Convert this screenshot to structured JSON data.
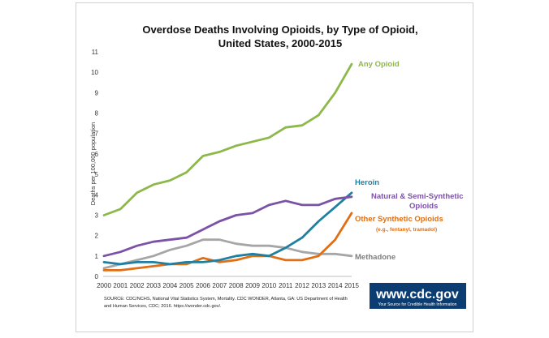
{
  "chart_data": {
    "type": "line",
    "title_line1": "Overdose Deaths Involving Opioids, by Type of Opioid,",
    "title_line2": "United States, 2000-2015",
    "ylabel": "Deaths per 100,000 population",
    "xlabel": "",
    "x": [
      2000,
      2001,
      2002,
      2003,
      2004,
      2005,
      2006,
      2007,
      2008,
      2009,
      2010,
      2011,
      2012,
      2013,
      2014,
      2015
    ],
    "ylim": [
      0,
      11
    ],
    "yticks": [
      0,
      1,
      2,
      3,
      4,
      5,
      6,
      7,
      8,
      9,
      10,
      11
    ],
    "grid": false,
    "series": [
      {
        "name": "Any Opioid",
        "color": "#8DB84A",
        "values": [
          3.0,
          3.3,
          4.1,
          4.5,
          4.7,
          5.1,
          5.9,
          6.1,
          6.4,
          6.6,
          6.8,
          7.3,
          7.4,
          7.9,
          9.0,
          10.4
        ]
      },
      {
        "name": "Natural & Semi-Synthetic Opioids",
        "color": "#7B52A6",
        "values": [
          1.0,
          1.2,
          1.5,
          1.7,
          1.8,
          1.9,
          2.3,
          2.7,
          3.0,
          3.1,
          3.5,
          3.7,
          3.5,
          3.5,
          3.8,
          3.9
        ]
      },
      {
        "name": "Heroin",
        "color": "#1F7FA0",
        "values": [
          0.7,
          0.6,
          0.7,
          0.7,
          0.6,
          0.7,
          0.7,
          0.8,
          1.0,
          1.1,
          1.0,
          1.4,
          1.9,
          2.7,
          3.4,
          4.1
        ]
      },
      {
        "name": "Other Synthetic Opioids",
        "subtitle": "(e.g., fentanyl, tramadol)",
        "color": "#E06F14",
        "values": [
          0.3,
          0.3,
          0.4,
          0.5,
          0.6,
          0.6,
          0.9,
          0.7,
          0.8,
          1.0,
          1.0,
          0.8,
          0.8,
          1.0,
          1.8,
          3.1
        ]
      },
      {
        "name": "Methadone",
        "color": "#A6A6A6",
        "values": [
          0.4,
          0.6,
          0.8,
          1.0,
          1.3,
          1.5,
          1.8,
          1.8,
          1.6,
          1.5,
          1.5,
          1.4,
          1.2,
          1.1,
          1.1,
          1.0
        ]
      }
    ]
  },
  "source": {
    "line1": "SOURCE: CDC/NCHS, National Vital Statistics System, Mortality. CDC WONDER, Atlanta, GA: US Department of Health",
    "line2": "and Human Services, CDC; 2016. https://wonder.cdc.gov/."
  },
  "logo": {
    "text": "www.cdc.gov",
    "tagline": "Your Source for Credible Health Information",
    "bg": "#0B3D73"
  }
}
